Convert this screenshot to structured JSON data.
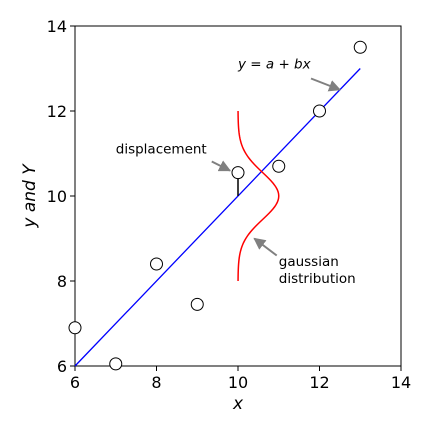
{
  "chart_data": {
    "type": "scatter",
    "xlabel": "x",
    "ylabel": "y and Y",
    "xlim": [
      6,
      14
    ],
    "ylim": [
      6,
      14
    ],
    "x_ticks": [
      6,
      8,
      10,
      12,
      14
    ],
    "y_ticks": [
      6,
      8,
      10,
      12,
      14
    ],
    "grid": false,
    "points": [
      {
        "x": 6,
        "y": 6.9
      },
      {
        "x": 7,
        "y": 6.05
      },
      {
        "x": 8,
        "y": 8.4
      },
      {
        "x": 9,
        "y": 7.45
      },
      {
        "x": 10,
        "y": 10.55
      },
      {
        "x": 11,
        "y": 10.7
      },
      {
        "x": 12,
        "y": 12.0
      },
      {
        "x": 13,
        "y": 13.5
      }
    ],
    "regression_line": {
      "x": [
        6,
        13
      ],
      "y": [
        6.0,
        13.0
      ],
      "color": "#0000ff",
      "label": "y = a + bx"
    },
    "gaussian": {
      "center_x": 10.0,
      "center_y": 10.0,
      "y_range": [
        8.0,
        12.0
      ],
      "sigma": 0.55,
      "amplitude": 1.0,
      "color": "#ff0000"
    },
    "displacement": {
      "x": 10,
      "from_y": 10.0,
      "to_y": 10.55
    },
    "annotations": {
      "equation": {
        "text": "y = a + bx",
        "x": 10.0,
        "y": 13.0,
        "arrow_to": [
          12.5,
          12.5
        ]
      },
      "displacement": {
        "text": "displacement",
        "x": 7.0,
        "y": 11.0,
        "arrow_to": [
          9.95,
          10.55
        ]
      },
      "gaussian_line1": {
        "text": "gaussian",
        "x": 11.0,
        "y": 8.35
      },
      "gaussian_line2": {
        "text": "distribution",
        "x": 11.0,
        "y": 7.95
      },
      "gaussian_arrow": {
        "from": [
          10.95,
          8.6
        ],
        "to": [
          10.4,
          9.0
        ]
      }
    },
    "colors": {
      "line": "#0000ff",
      "gaussian": "#ff0000",
      "arrow": "#808080"
    }
  }
}
